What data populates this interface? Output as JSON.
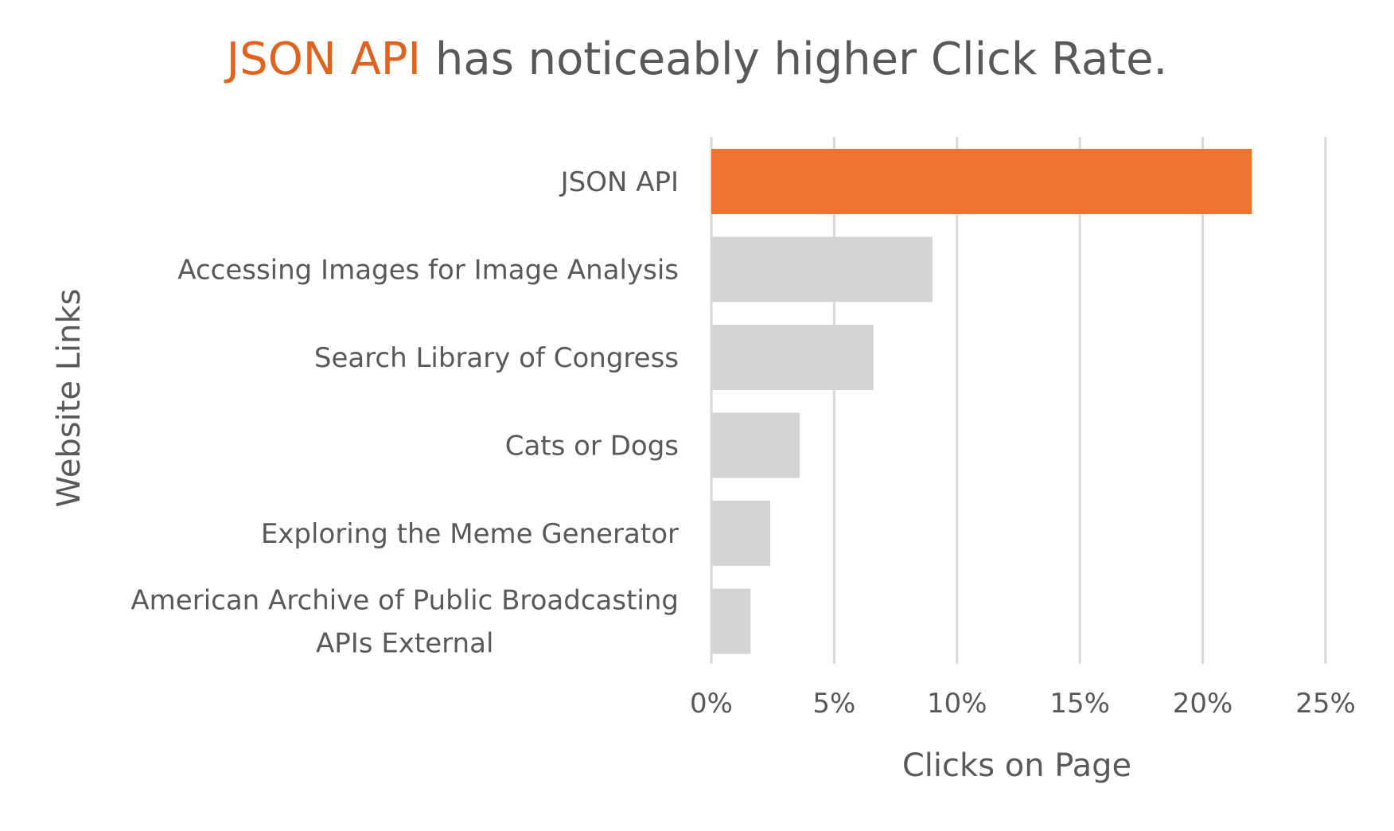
{
  "chart_data": {
    "type": "bar",
    "orientation": "horizontal",
    "title": {
      "highlight": "JSON API",
      "rest": " has noticeably higher Click Rate."
    },
    "xlabel": "Clicks on Page",
    "ylabel": "Website Links",
    "categories": [
      [
        "JSON API"
      ],
      [
        "Accessing Images for Image Analysis"
      ],
      [
        "Search Library of Congress"
      ],
      [
        "Cats or Dogs"
      ],
      [
        "Exploring the Meme Generator"
      ],
      [
        "American Archive of Public Broadcasting",
        "APIs External"
      ]
    ],
    "values": [
      0.22,
      0.09,
      0.066,
      0.036,
      0.024,
      0.016
    ],
    "xlim": [
      0,
      0.25
    ],
    "xticks": [
      0,
      0.05,
      0.1,
      0.15,
      0.2,
      0.25
    ],
    "xtick_labels": [
      "0%",
      "5%",
      "10%",
      "15%",
      "20%",
      "25%"
    ],
    "grid": "vertical",
    "legend": "none",
    "highlight_index": 0,
    "colors": {
      "highlight_bar": "#ED7431",
      "other_bar": "#D4D4D4",
      "title_highlight": "#E0621E",
      "title_text": "#595959",
      "grid": "#D9D9D9",
      "text": "#595959"
    }
  }
}
